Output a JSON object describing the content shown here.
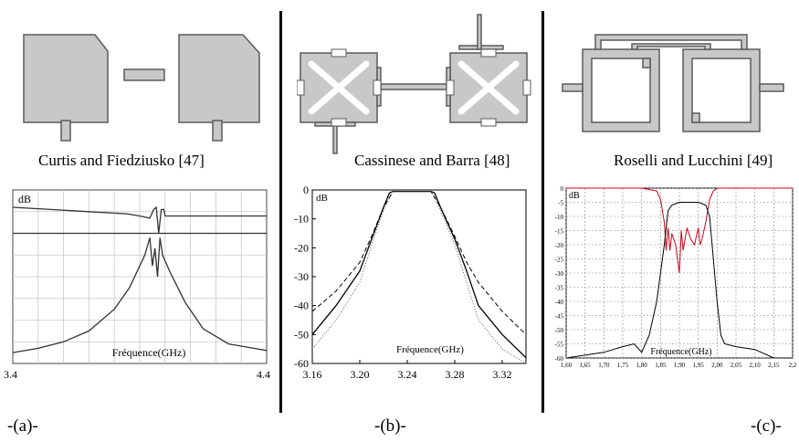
{
  "panels": [
    {
      "caption": "Curtis and Fiedziusko [47]",
      "label": "-(a)-",
      "chart": {
        "unit": "dB",
        "xlabel": "Fréquence(GHz)",
        "xticks": [
          "3.4",
          "4.4"
        ]
      }
    },
    {
      "caption": "Cassinese and Barra [48]",
      "label": "-(b)-",
      "chart": {
        "unit": "dB",
        "xlabel": "Fréquence(GHz)",
        "xticks": [
          "3.16",
          "3.20",
          "3.24",
          "3.28",
          "3.32"
        ],
        "yticks": [
          "0",
          "-10",
          "-20",
          "-30",
          "-40",
          "-50",
          "-60"
        ]
      }
    },
    {
      "caption": "Roselli and Lucchini [49]",
      "label": "-(c)-",
      "chart": {
        "unit": "dB",
        "xlabel": "Fréquence(GHz)",
        "xticks": [
          "1,60",
          "1,65",
          "1,70",
          "1,75",
          "1,80",
          "1,85",
          "1,90",
          "1,95",
          "2,00",
          "2,05",
          "2,10",
          "2,15",
          "2,2"
        ],
        "yticks": [
          "0",
          "-5",
          "-10",
          "-15",
          "-20",
          "-25",
          "-30",
          "-35",
          "-40",
          "-45",
          "-50",
          "-55",
          "-60"
        ],
        "series_colors": [
          "#000000",
          "#d0021b"
        ]
      }
    }
  ],
  "chart_data": [
    {
      "type": "line",
      "xlim": [
        3.4,
        4.4
      ],
      "ylim": [
        -80,
        0
      ],
      "grid": true,
      "series": [
        {
          "x": [
            3.4,
            3.55,
            3.7,
            3.85,
            3.9,
            3.94,
            3.955,
            3.965,
            3.975,
            3.985,
            3.995,
            4.0,
            4.1,
            4.25,
            4.4
          ],
          "y": [
            -8,
            -9,
            -10,
            -11,
            -12,
            -13,
            -9,
            -8,
            -20,
            -9,
            -9,
            -12,
            -12,
            -12,
            -12
          ]
        },
        {
          "x": [
            3.4,
            3.5,
            3.6,
            3.7,
            3.8,
            3.86,
            3.92,
            3.94,
            3.95,
            3.96,
            3.97,
            3.98,
            3.99,
            4.02,
            4.08,
            4.15,
            4.25,
            4.35,
            4.4
          ],
          "y": [
            -75,
            -73,
            -70,
            -65,
            -55,
            -45,
            -30,
            -22,
            -35,
            -27,
            -40,
            -22,
            -30,
            -38,
            -52,
            -64,
            -71,
            -73,
            -74
          ]
        }
      ]
    },
    {
      "type": "line",
      "xlim": [
        3.16,
        3.34
      ],
      "ylim": [
        -60,
        0
      ],
      "grid": false,
      "series": [
        {
          "x": [
            3.16,
            3.18,
            3.2,
            3.21,
            3.22,
            3.225,
            3.228,
            3.26,
            3.263,
            3.268,
            3.28,
            3.29,
            3.3,
            3.32,
            3.34
          ],
          "y": [
            -50,
            -40,
            -28,
            -17,
            -6,
            -1,
            -0.5,
            -0.5,
            -1,
            -6,
            -17,
            -28,
            -40,
            -50,
            -58
          ]
        },
        {
          "x": [
            3.16,
            3.18,
            3.2,
            3.21,
            3.22,
            3.228,
            3.26,
            3.268,
            3.28,
            3.29,
            3.3,
            3.32,
            3.34
          ],
          "y": [
            -42,
            -35,
            -25,
            -16,
            -6,
            -0.5,
            -0.5,
            -6,
            -16,
            -25,
            -32,
            -42,
            -50
          ]
        },
        {
          "x": [
            3.16,
            3.18,
            3.2,
            3.21,
            3.22,
            3.228,
            3.26,
            3.268,
            3.28,
            3.29,
            3.3,
            3.32,
            3.34
          ],
          "y": [
            -55,
            -45,
            -32,
            -19,
            -7,
            -0.5,
            -0.5,
            -7,
            -19,
            -32,
            -45,
            -55,
            -60
          ]
        }
      ]
    },
    {
      "type": "line",
      "xlim": [
        1.6,
        2.2
      ],
      "ylim": [
        -60,
        0
      ],
      "grid": true,
      "series": [
        {
          "name": "",
          "x": [
            1.6,
            1.7,
            1.75,
            1.78,
            1.8,
            1.82,
            1.84,
            1.86,
            1.87,
            1.88,
            1.9,
            1.95,
            1.97,
            1.98,
            1.99,
            2.0,
            2.01,
            2.02,
            2.05,
            2.1,
            2.15,
            2.2
          ],
          "y": [
            -60,
            -58,
            -56,
            -55,
            -58,
            -52,
            -40,
            -20,
            -8,
            -6,
            -5,
            -5,
            -6,
            -10,
            -25,
            -40,
            -52,
            -55,
            -56,
            -57,
            -60,
            -60
          ]
        },
        {
          "name": "",
          "x": [
            1.6,
            1.8,
            1.84,
            1.85,
            1.86,
            1.865,
            1.87,
            1.875,
            1.88,
            1.89,
            1.9,
            1.905,
            1.91,
            1.92,
            1.93,
            1.94,
            1.95,
            1.955,
            1.96,
            1.97,
            1.98,
            1.99,
            2.0,
            2.2
          ],
          "y": [
            0,
            0,
            -1,
            -4,
            -12,
            -22,
            -14,
            -22,
            -16,
            -20,
            -30,
            -15,
            -22,
            -14,
            -18,
            -20,
            -14,
            -20,
            -18,
            -12,
            -4,
            -1,
            0,
            0
          ]
        }
      ]
    }
  ]
}
